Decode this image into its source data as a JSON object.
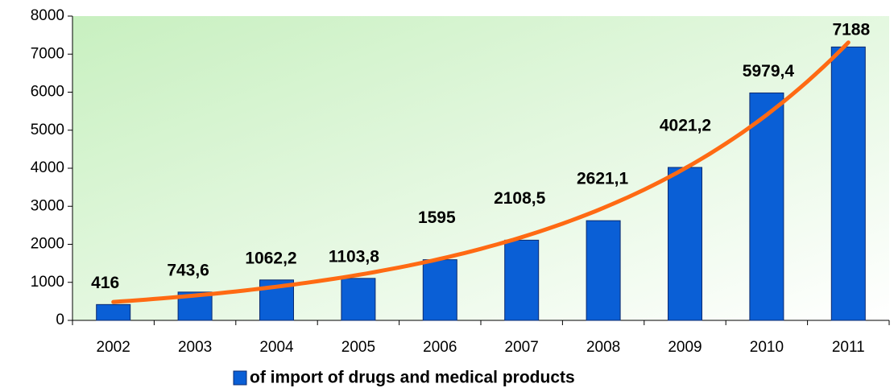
{
  "chart_data": {
    "type": "bar",
    "categories": [
      "2002",
      "2003",
      "2004",
      "2005",
      "2006",
      "2007",
      "2008",
      "2009",
      "2010",
      "2011"
    ],
    "series": [
      {
        "name": "of import of drugs and medical products",
        "color": "#0a5fd6",
        "values": [
          416,
          743.6,
          1062.2,
          1103.8,
          1595,
          2108.5,
          2621.1,
          4021.2,
          5979.4,
          7188
        ],
        "value_labels": [
          "416",
          "743,6",
          "1062,2",
          "1103,8",
          "1595",
          "2108,5",
          "2621,1",
          "4021,2",
          "5979,4",
          "7188"
        ]
      }
    ],
    "ylim": [
      0,
      8000
    ],
    "yticks": [
      0,
      1000,
      2000,
      3000,
      4000,
      5000,
      6000,
      7000,
      8000
    ],
    "trendline": {
      "type": "exponential",
      "color": "#ff6a13"
    },
    "legend": "bottom"
  }
}
